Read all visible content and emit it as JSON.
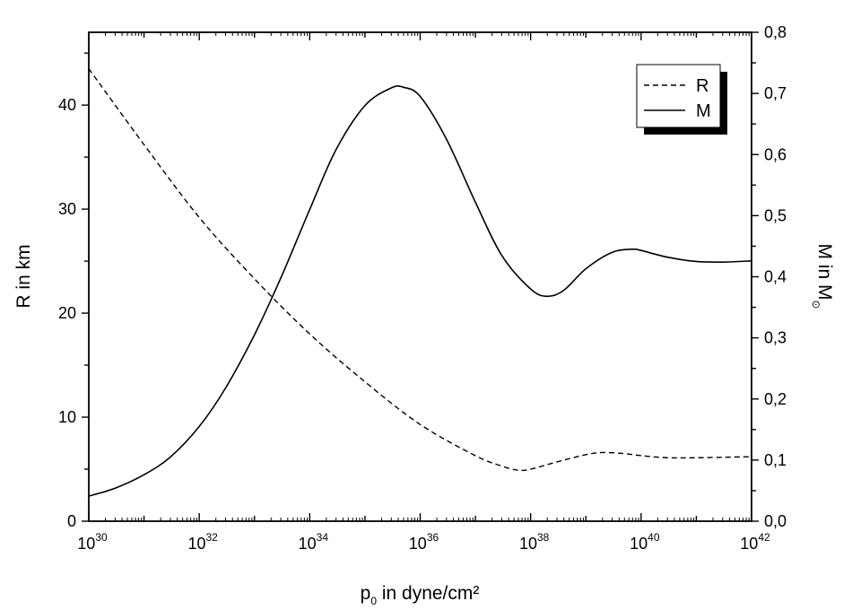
{
  "chart_data": {
    "type": "line",
    "xlabel": {
      "base": "p",
      "sub": "0",
      "rest": " in dyne/cm²"
    },
    "ylabel_left": "R in km",
    "ylabel_right": {
      "text": "M in M",
      "sub": "⊙"
    },
    "x_scale": "log",
    "xlim": [
      1e+30,
      1e+42
    ],
    "ylim_left": [
      0,
      47
    ],
    "ylim_right": [
      0,
      0.8
    ],
    "x_ticks": [
      {
        "base": "10",
        "exp": "30",
        "value": 1e+30
      },
      {
        "base": "10",
        "exp": "32",
        "value": 1e+32
      },
      {
        "base": "10",
        "exp": "34",
        "value": 1e+34
      },
      {
        "base": "10",
        "exp": "36",
        "value": 1e+36
      },
      {
        "base": "10",
        "exp": "38",
        "value": 1e+38
      },
      {
        "base": "10",
        "exp": "40",
        "value": 1e+40
      },
      {
        "base": "10",
        "exp": "42",
        "value": 1e+42
      }
    ],
    "y_ticks_left": [
      "0",
      "10",
      "20",
      "30",
      "40"
    ],
    "y_ticks_left_values": [
      0,
      10,
      20,
      30,
      40
    ],
    "y_ticks_right": [
      "0,0",
      "0,1",
      "0,2",
      "0,3",
      "0,4",
      "0,5",
      "0,6",
      "0,7",
      "0,8"
    ],
    "y_ticks_right_values": [
      0,
      0.1,
      0.2,
      0.3,
      0.4,
      0.5,
      0.6,
      0.7,
      0.8
    ],
    "grid": false,
    "legend_position": "top-right",
    "series": [
      {
        "name": "R",
        "axis": "left",
        "style": "dashed",
        "x": [
          1e+30,
          1e+31,
          1e+32,
          1e+33,
          1e+34,
          1e+35,
          1e+36,
          1e+37,
          3e+37,
          6e+37,
          1e+38,
          3e+38,
          1e+39,
          2e+39,
          5e+39,
          1e+40,
          3e+40,
          1e+41,
          1e+42
        ],
        "y": [
          43.5,
          36.2,
          29.2,
          23.3,
          18.0,
          13.4,
          9.3,
          6.3,
          5.3,
          4.9,
          5.0,
          5.7,
          6.4,
          6.6,
          6.5,
          6.3,
          6.1,
          6.1,
          6.2
        ]
      },
      {
        "name": "M",
        "axis": "right",
        "style": "solid",
        "x": [
          1e+30,
          3e+30,
          1e+31,
          3e+31,
          1e+32,
          3e+32,
          1e+33,
          3e+33,
          1e+34,
          3e+34,
          1e+35,
          3e+35,
          5e+35,
          1e+36,
          3e+36,
          1e+37,
          3e+37,
          1e+38,
          2e+38,
          4e+38,
          1e+39,
          3e+39,
          7e+39,
          1e+40,
          3e+40,
          1e+41,
          3e+41,
          1e+42
        ],
        "y": [
          0.041,
          0.054,
          0.076,
          0.105,
          0.155,
          0.218,
          0.305,
          0.398,
          0.51,
          0.608,
          0.68,
          0.709,
          0.71,
          0.695,
          0.625,
          0.522,
          0.435,
          0.38,
          0.368,
          0.378,
          0.413,
          0.44,
          0.445,
          0.443,
          0.432,
          0.425,
          0.424,
          0.426
        ]
      }
    ]
  }
}
